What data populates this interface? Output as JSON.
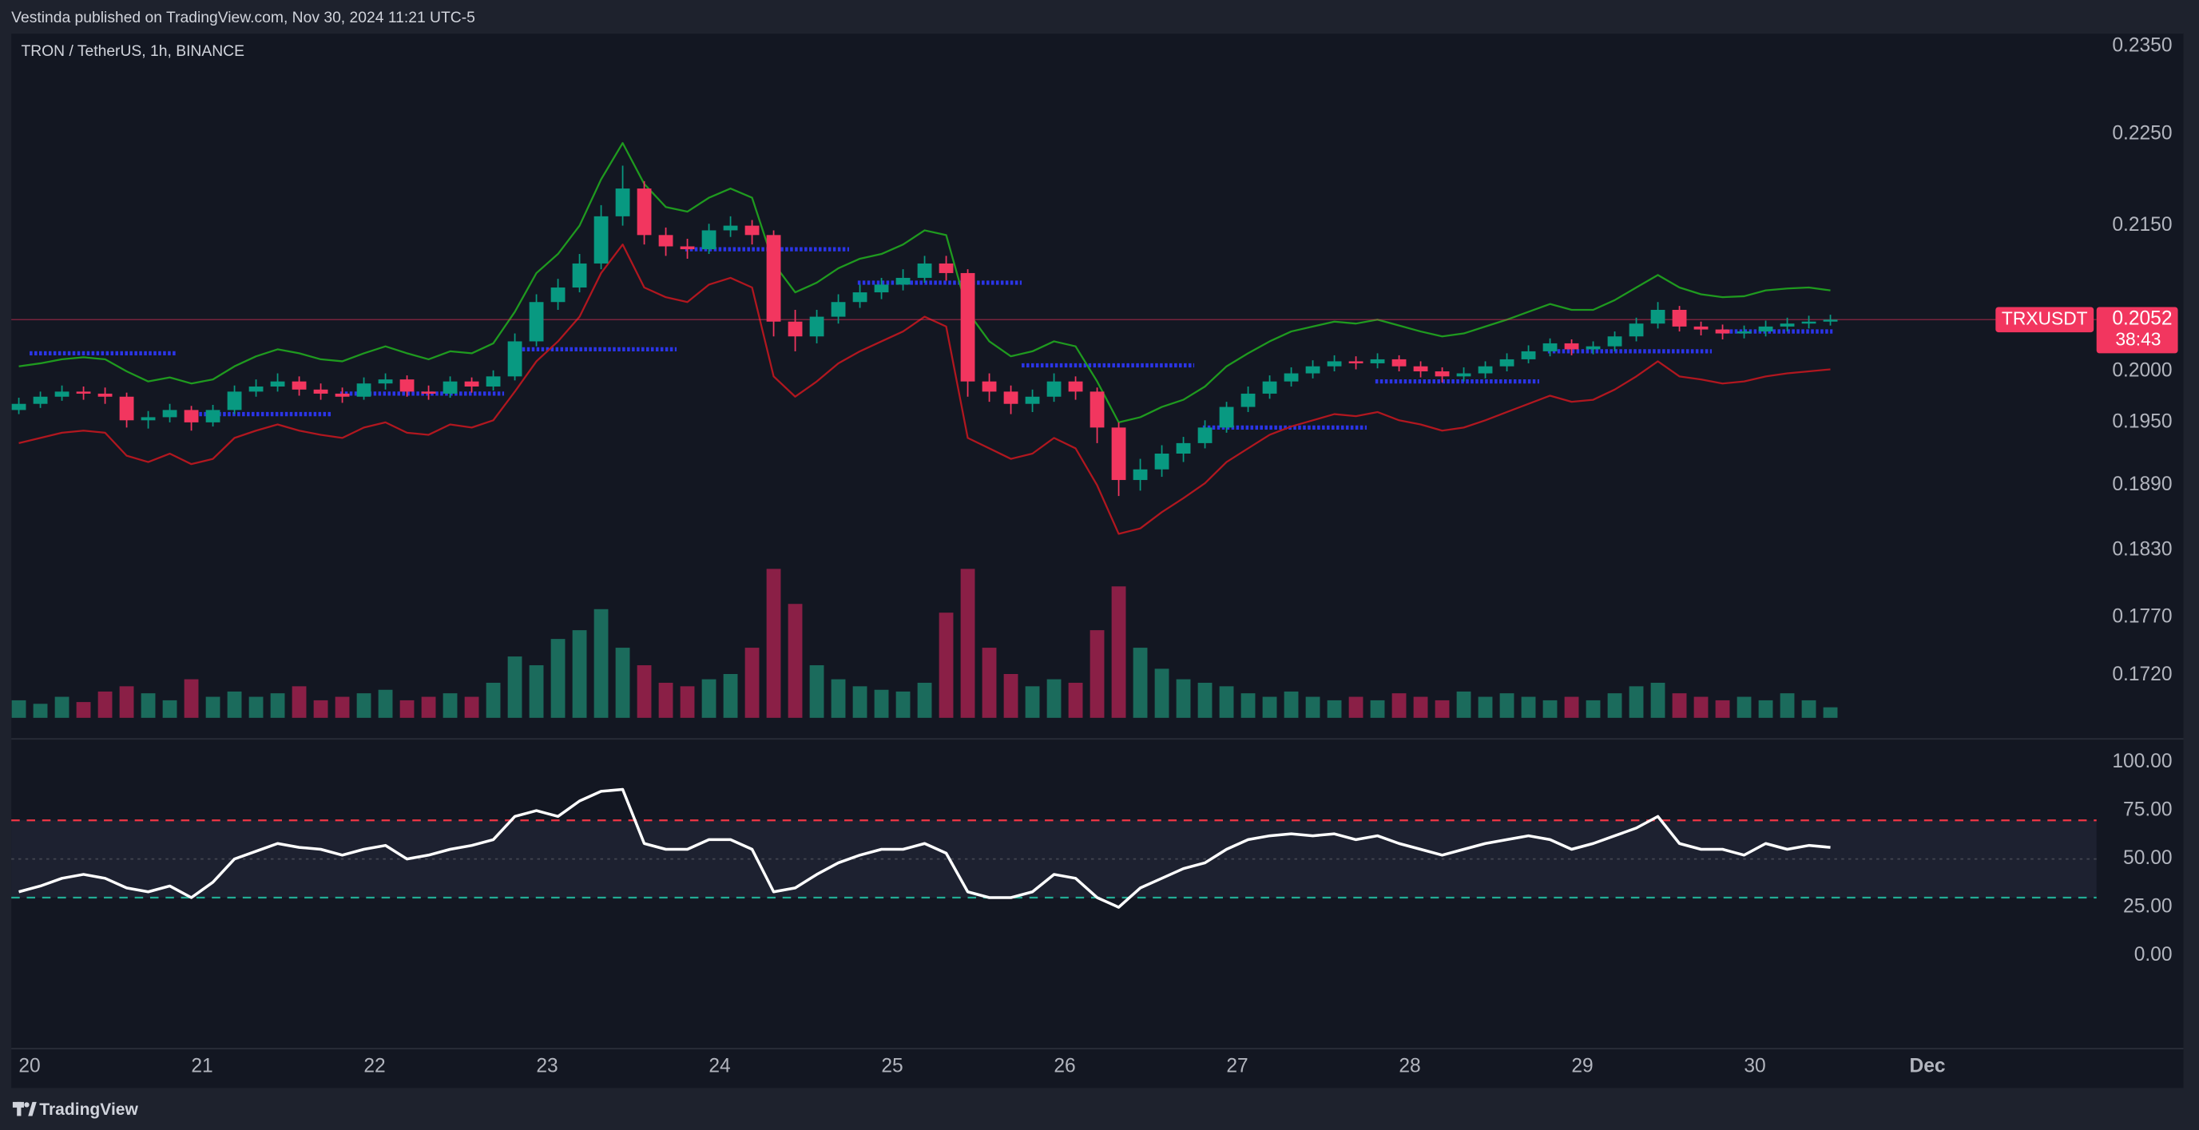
{
  "header": {
    "text": "Vestinda published on TradingView.com, Nov 30, 2024 11:21 UTC-5"
  },
  "footer": {
    "brand": "TradingView"
  },
  "chart_data": [
    {
      "type": "candlestick",
      "title": "TRON / TetherUS, 1h, BINANCE",
      "log_scale": true,
      "xlim": [
        19.894,
        31.98
      ],
      "ylim": [
        0.1684,
        0.2365
      ],
      "yticks": [
        {
          "value": 0.235,
          "label": "0.2350"
        },
        {
          "value": 0.225,
          "label": "0.2250"
        },
        {
          "value": 0.215,
          "label": "0.2150"
        },
        {
          "value": 0.2,
          "label": "0.2000"
        },
        {
          "value": 0.195,
          "label": "0.1950"
        },
        {
          "value": 0.189,
          "label": "0.1890"
        },
        {
          "value": 0.183,
          "label": "0.1830"
        },
        {
          "value": 0.177,
          "label": "0.1770"
        },
        {
          "value": 0.172,
          "label": "0.1720"
        }
      ],
      "up_color": "#089981",
      "down_color": "#f2365f",
      "volume_up_color": "#1b6b5c",
      "volume_down_color": "#8a1f46",
      "x": [
        19.9375,
        20.0625,
        20.1875,
        20.3125,
        20.4375,
        20.5625,
        20.6875,
        20.8125,
        20.9375,
        21.0625,
        21.1875,
        21.3125,
        21.4375,
        21.5625,
        21.6875,
        21.8125,
        21.9375,
        22.0625,
        22.1875,
        22.3125,
        22.4375,
        22.5625,
        22.6875,
        22.8125,
        22.9375,
        23.0625,
        23.1875,
        23.3125,
        23.4375,
        23.5625,
        23.6875,
        23.8125,
        23.9375,
        24.0625,
        24.1875,
        24.3125,
        24.4375,
        24.5625,
        24.6875,
        24.8125,
        24.9375,
        25.0625,
        25.1875,
        25.3125,
        25.4375,
        25.5625,
        25.6875,
        25.8125,
        25.9375,
        26.0625,
        26.1875,
        26.3125,
        26.4375,
        26.5625,
        26.6875,
        26.8125,
        26.9375,
        27.0625,
        27.1875,
        27.3125,
        27.4375,
        27.5625,
        27.6875,
        27.8125,
        27.9375,
        28.0625,
        28.1875,
        28.3125,
        28.4375,
        28.5625,
        28.6875,
        28.8125,
        28.9375,
        29.0625,
        29.1875,
        29.3125,
        29.4375,
        29.5625,
        29.6875,
        29.8125,
        29.9375,
        30.0625,
        30.1875,
        30.3125,
        30.4375
      ],
      "open": [
        0.1962,
        0.1968,
        0.1975,
        0.198,
        0.1978,
        0.1975,
        0.1952,
        0.1955,
        0.1962,
        0.195,
        0.1962,
        0.198,
        0.1985,
        0.199,
        0.1982,
        0.1978,
        0.1975,
        0.1988,
        0.1992,
        0.198,
        0.1978,
        0.199,
        0.1985,
        0.1995,
        0.203,
        0.207,
        0.2085,
        0.211,
        0.216,
        0.219,
        0.214,
        0.2128,
        0.2125,
        0.2145,
        0.215,
        0.214,
        0.205,
        0.2035,
        0.2055,
        0.207,
        0.208,
        0.2088,
        0.2095,
        0.211,
        0.21,
        0.199,
        0.198,
        0.1968,
        0.1975,
        0.199,
        0.198,
        0.1945,
        0.1895,
        0.1905,
        0.192,
        0.193,
        0.1945,
        0.1965,
        0.1978,
        0.199,
        0.1998,
        0.2005,
        0.201,
        0.2008,
        0.2012,
        0.2005,
        0.2,
        0.1995,
        0.1998,
        0.2005,
        0.2012,
        0.202,
        0.2028,
        0.2022,
        0.2025,
        0.2035,
        0.2048,
        0.2062,
        0.2045,
        0.2042,
        0.2038,
        0.204,
        0.2045,
        0.2048,
        0.205
      ],
      "high": [
        0.1974,
        0.198,
        0.1986,
        0.1985,
        0.1984,
        0.1979,
        0.1961,
        0.1968,
        0.1966,
        0.1967,
        0.1986,
        0.1992,
        0.1998,
        0.1995,
        0.1988,
        0.1984,
        0.1994,
        0.1998,
        0.1996,
        0.1986,
        0.1995,
        0.1994,
        0.2001,
        0.2038,
        0.2078,
        0.2094,
        0.212,
        0.2172,
        0.2215,
        0.2198,
        0.2148,
        0.2136,
        0.2152,
        0.216,
        0.2156,
        0.2145,
        0.2062,
        0.2062,
        0.2078,
        0.2088,
        0.2095,
        0.2104,
        0.2118,
        0.2118,
        0.2104,
        0.1998,
        0.1986,
        0.1982,
        0.1998,
        0.1995,
        0.1984,
        0.195,
        0.1915,
        0.1928,
        0.1936,
        0.1952,
        0.197,
        0.1985,
        0.1996,
        0.2004,
        0.2011,
        0.2016,
        0.2015,
        0.2018,
        0.2016,
        0.201,
        0.2004,
        0.2004,
        0.201,
        0.2018,
        0.2026,
        0.2033,
        0.2032,
        0.203,
        0.204,
        0.2054,
        0.207,
        0.2066,
        0.205,
        0.2047,
        0.2046,
        0.2051,
        0.2054,
        0.2056,
        0.2057
      ],
      "low": [
        0.1958,
        0.1964,
        0.1971,
        0.1972,
        0.1968,
        0.1945,
        0.1944,
        0.195,
        0.1942,
        0.1946,
        0.1958,
        0.1975,
        0.198,
        0.1976,
        0.1972,
        0.1969,
        0.1972,
        0.1982,
        0.1975,
        0.1972,
        0.1974,
        0.1979,
        0.1981,
        0.1991,
        0.2025,
        0.2062,
        0.208,
        0.2104,
        0.215,
        0.213,
        0.2118,
        0.2115,
        0.212,
        0.2138,
        0.213,
        0.2035,
        0.202,
        0.2028,
        0.2048,
        0.2064,
        0.2073,
        0.2082,
        0.209,
        0.2092,
        0.1975,
        0.197,
        0.1958,
        0.196,
        0.197,
        0.1972,
        0.193,
        0.188,
        0.1885,
        0.1898,
        0.1912,
        0.1925,
        0.194,
        0.196,
        0.1973,
        0.1985,
        0.1993,
        0.2,
        0.2002,
        0.2003,
        0.2,
        0.1994,
        0.1989,
        0.199,
        0.1993,
        0.2,
        0.2008,
        0.2015,
        0.2016,
        0.2017,
        0.202,
        0.203,
        0.2043,
        0.204,
        0.2036,
        0.2032,
        0.2033,
        0.2035,
        0.204,
        0.2043,
        0.2046
      ],
      "close": [
        0.1968,
        0.1975,
        0.198,
        0.1978,
        0.1975,
        0.1952,
        0.1955,
        0.1962,
        0.195,
        0.1962,
        0.198,
        0.1985,
        0.199,
        0.1982,
        0.1978,
        0.1975,
        0.1988,
        0.1992,
        0.198,
        0.1978,
        0.199,
        0.1985,
        0.1995,
        0.203,
        0.207,
        0.2085,
        0.211,
        0.216,
        0.219,
        0.214,
        0.2128,
        0.2125,
        0.2145,
        0.215,
        0.214,
        0.205,
        0.2035,
        0.2055,
        0.207,
        0.208,
        0.2088,
        0.2095,
        0.211,
        0.21,
        0.199,
        0.198,
        0.1968,
        0.1975,
        0.199,
        0.198,
        0.1945,
        0.1895,
        0.1905,
        0.192,
        0.193,
        0.1945,
        0.1965,
        0.1978,
        0.199,
        0.1998,
        0.2005,
        0.201,
        0.2008,
        0.2012,
        0.2005,
        0.2,
        0.1995,
        0.1998,
        0.2005,
        0.2012,
        0.202,
        0.2028,
        0.2022,
        0.2025,
        0.2035,
        0.2048,
        0.2062,
        0.2045,
        0.2042,
        0.2038,
        0.204,
        0.2045,
        0.2048,
        0.205,
        0.2052
      ],
      "volume": [
        10,
        8,
        12,
        9,
        15,
        18,
        14,
        10,
        22,
        12,
        15,
        12,
        14,
        18,
        10,
        12,
        14,
        16,
        10,
        12,
        14,
        12,
        20,
        35,
        30,
        45,
        50,
        62,
        40,
        30,
        20,
        18,
        22,
        25,
        40,
        85,
        65,
        30,
        22,
        18,
        16,
        15,
        20,
        60,
        85,
        40,
        25,
        18,
        22,
        20,
        50,
        75,
        40,
        28,
        22,
        20,
        18,
        14,
        12,
        15,
        12,
        10,
        12,
        10,
        14,
        12,
        10,
        15,
        12,
        14,
        12,
        10,
        12,
        10,
        14,
        18,
        20,
        14,
        12,
        10,
        12,
        10,
        14,
        10,
        6
      ],
      "volume_lim": [
        0,
        100
      ],
      "bands": [
        {
          "color": "#1f9a1f",
          "values": [
            0.2005,
            0.2008,
            0.2012,
            0.2014,
            0.2012,
            0.2,
            0.199,
            0.1994,
            0.1988,
            0.1992,
            0.2005,
            0.2015,
            0.2022,
            0.2018,
            0.2012,
            0.201,
            0.2018,
            0.2025,
            0.2018,
            0.2012,
            0.202,
            0.2018,
            0.2028,
            0.206,
            0.21,
            0.212,
            0.215,
            0.22,
            0.224,
            0.2195,
            0.217,
            0.2165,
            0.218,
            0.219,
            0.218,
            0.211,
            0.208,
            0.209,
            0.2105,
            0.2115,
            0.212,
            0.213,
            0.2145,
            0.214,
            0.206,
            0.203,
            0.2015,
            0.202,
            0.203,
            0.2025,
            0.199,
            0.195,
            0.1955,
            0.1965,
            0.1972,
            0.1985,
            0.2005,
            0.2018,
            0.203,
            0.204,
            0.2045,
            0.205,
            0.2048,
            0.2052,
            0.2046,
            0.204,
            0.2035,
            0.2038,
            0.2045,
            0.2052,
            0.206,
            0.2068,
            0.2062,
            0.2062,
            0.2072,
            0.2085,
            0.2098,
            0.2085,
            0.2078,
            0.2075,
            0.2076,
            0.2082,
            0.2084,
            0.2085,
            0.2082
          ]
        },
        {
          "color": "#b0171f",
          "values": [
            0.193,
            0.1935,
            0.194,
            0.1942,
            0.194,
            0.1918,
            0.1912,
            0.192,
            0.191,
            0.1915,
            0.1935,
            0.1942,
            0.1948,
            0.1942,
            0.1938,
            0.1935,
            0.1945,
            0.195,
            0.194,
            0.1938,
            0.1948,
            0.1945,
            0.1952,
            0.198,
            0.201,
            0.203,
            0.2055,
            0.21,
            0.213,
            0.2085,
            0.2075,
            0.207,
            0.2088,
            0.2095,
            0.2085,
            0.1995,
            0.1975,
            0.199,
            0.2008,
            0.202,
            0.203,
            0.204,
            0.2055,
            0.2045,
            0.1935,
            0.1925,
            0.1915,
            0.192,
            0.1935,
            0.1925,
            0.189,
            0.1845,
            0.185,
            0.1865,
            0.1878,
            0.1892,
            0.1912,
            0.1925,
            0.1938,
            0.1946,
            0.1952,
            0.1958,
            0.1956,
            0.196,
            0.1952,
            0.1948,
            0.1942,
            0.1945,
            0.1952,
            0.196,
            0.1968,
            0.1976,
            0.197,
            0.1972,
            0.1982,
            0.1995,
            0.201,
            0.1995,
            0.1992,
            0.1988,
            0.199,
            0.1995,
            0.1998,
            0.2,
            0.2002
          ]
        }
      ],
      "levels": {
        "color": "#2b35e8",
        "segments": [
          {
            "x": [
              20.0,
              20.85
            ],
            "value": 0.2018
          },
          {
            "x": [
              20.9,
              21.75
            ],
            "value": 0.1958
          },
          {
            "x": [
              21.8,
              22.75
            ],
            "value": 0.1978
          },
          {
            "x": [
              22.8,
              23.75
            ],
            "value": 0.2022
          },
          {
            "x": [
              23.8,
              24.75
            ],
            "value": 0.2125
          },
          {
            "x": [
              24.8,
              25.75
            ],
            "value": 0.209
          },
          {
            "x": [
              25.75,
              26.75
            ],
            "value": 0.2006
          },
          {
            "x": [
              26.8,
              27.75
            ],
            "value": 0.1945
          },
          {
            "x": [
              27.8,
              28.75
            ],
            "value": 0.199
          },
          {
            "x": [
              28.8,
              29.75
            ],
            "value": 0.202
          },
          {
            "x": [
              29.8,
              30.45
            ],
            "value": 0.204
          }
        ]
      },
      "last_price": 0.2052,
      "symbol": "TRXUSDT",
      "countdown": "38:43",
      "last_price_color": "#f2365f"
    },
    {
      "type": "line",
      "xlim": [
        19.894,
        31.98
      ],
      "ylim": [
        -46,
        102
      ],
      "yticks": [
        {
          "value": 100,
          "label": "100.00"
        },
        {
          "value": 75,
          "label": "75.00"
        },
        {
          "value": 50,
          "label": "50.00"
        },
        {
          "value": 25,
          "label": "25.00"
        },
        {
          "value": 0,
          "label": "0.00"
        }
      ],
      "xticks": [
        20,
        21,
        22,
        23,
        24,
        25,
        26,
        27,
        28,
        29,
        30,
        {
          "value": 31,
          "label": "Dec"
        }
      ],
      "x": [
        19.9375,
        20.0625,
        20.1875,
        20.3125,
        20.4375,
        20.5625,
        20.6875,
        20.8125,
        20.9375,
        21.0625,
        21.1875,
        21.3125,
        21.4375,
        21.5625,
        21.6875,
        21.8125,
        21.9375,
        22.0625,
        22.1875,
        22.3125,
        22.4375,
        22.5625,
        22.6875,
        22.8125,
        22.9375,
        23.0625,
        23.1875,
        23.3125,
        23.4375,
        23.5625,
        23.6875,
        23.8125,
        23.9375,
        24.0625,
        24.1875,
        24.3125,
        24.4375,
        24.5625,
        24.6875,
        24.8125,
        24.9375,
        25.0625,
        25.1875,
        25.3125,
        25.4375,
        25.5625,
        25.6875,
        25.8125,
        25.9375,
        26.0625,
        26.1875,
        26.3125,
        26.4375,
        26.5625,
        26.6875,
        26.8125,
        26.9375,
        27.0625,
        27.1875,
        27.3125,
        27.4375,
        27.5625,
        27.6875,
        27.8125,
        27.9375,
        28.0625,
        28.1875,
        28.3125,
        28.4375,
        28.5625,
        28.6875,
        28.8125,
        28.9375,
        29.0625,
        29.1875,
        29.3125,
        29.4375,
        29.5625,
        29.6875,
        29.8125,
        29.9375,
        30.0625,
        30.1875,
        30.3125,
        30.4375
      ],
      "values": [
        33,
        36,
        40,
        42,
        40,
        35,
        33,
        36,
        30,
        38,
        50,
        54,
        58,
        56,
        55,
        52,
        55,
        57,
        50,
        52,
        55,
        57,
        60,
        72,
        75,
        72,
        80,
        85,
        86,
        58,
        55,
        55,
        60,
        60,
        55,
        33,
        35,
        42,
        48,
        52,
        55,
        55,
        58,
        53,
        33,
        30,
        30,
        33,
        42,
        40,
        30,
        25,
        35,
        40,
        45,
        48,
        55,
        60,
        62,
        63,
        62,
        63,
        60,
        62,
        58,
        55,
        52,
        55,
        58,
        60,
        62,
        60,
        55,
        58,
        62,
        66,
        72,
        58,
        55,
        55,
        52,
        58,
        55,
        57,
        56
      ],
      "color": "#ffffff",
      "reference_lines": [
        {
          "value": 70,
          "color": "#f23645"
        },
        {
          "value": 30,
          "color": "#22ab94"
        }
      ],
      "midline": 50,
      "band_fill": "#1d2130"
    }
  ]
}
